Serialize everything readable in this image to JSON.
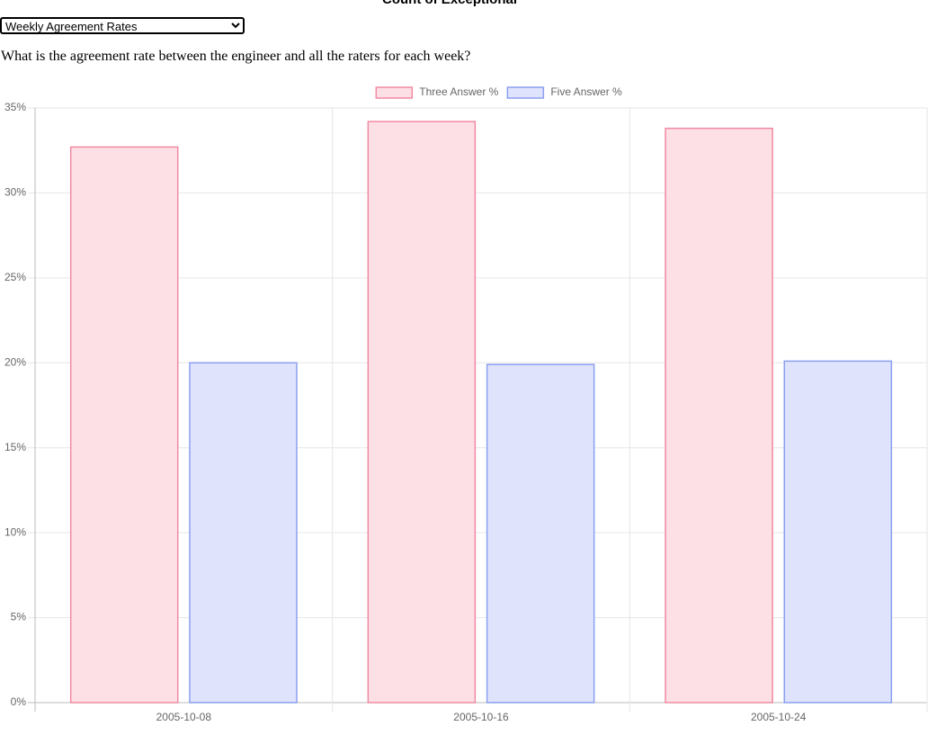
{
  "header_text": "Count of Exceptional",
  "select": {
    "value": "Weekly Agreement Rates"
  },
  "question": "What is the agreement rate between the engineer and all the raters for each week?",
  "chart_data": {
    "type": "bar",
    "categories": [
      "2005-10-08",
      "2005-10-16",
      "2005-10-24"
    ],
    "series": [
      {
        "name": "Three Answer %",
        "color": "#f08aa2",
        "fill": "#fde0e6",
        "values": [
          32.7,
          34.2,
          33.8
        ]
      },
      {
        "name": "Five Answer %",
        "color": "#8c9ff0",
        "fill": "#dfe4fc",
        "values": [
          20.0,
          19.9,
          20.1
        ]
      }
    ],
    "ylim": [
      0,
      35
    ],
    "yticks": [
      {
        "value": 0,
        "label": "0%"
      },
      {
        "value": 5,
        "label": "5%"
      },
      {
        "value": 10,
        "label": "10%"
      },
      {
        "value": 15,
        "label": "15%"
      },
      {
        "value": 20,
        "label": "20%"
      },
      {
        "value": 25,
        "label": "25%"
      },
      {
        "value": 30,
        "label": "30%"
      },
      {
        "value": 35,
        "label": "35%"
      }
    ],
    "grid": true,
    "legend": "top"
  }
}
